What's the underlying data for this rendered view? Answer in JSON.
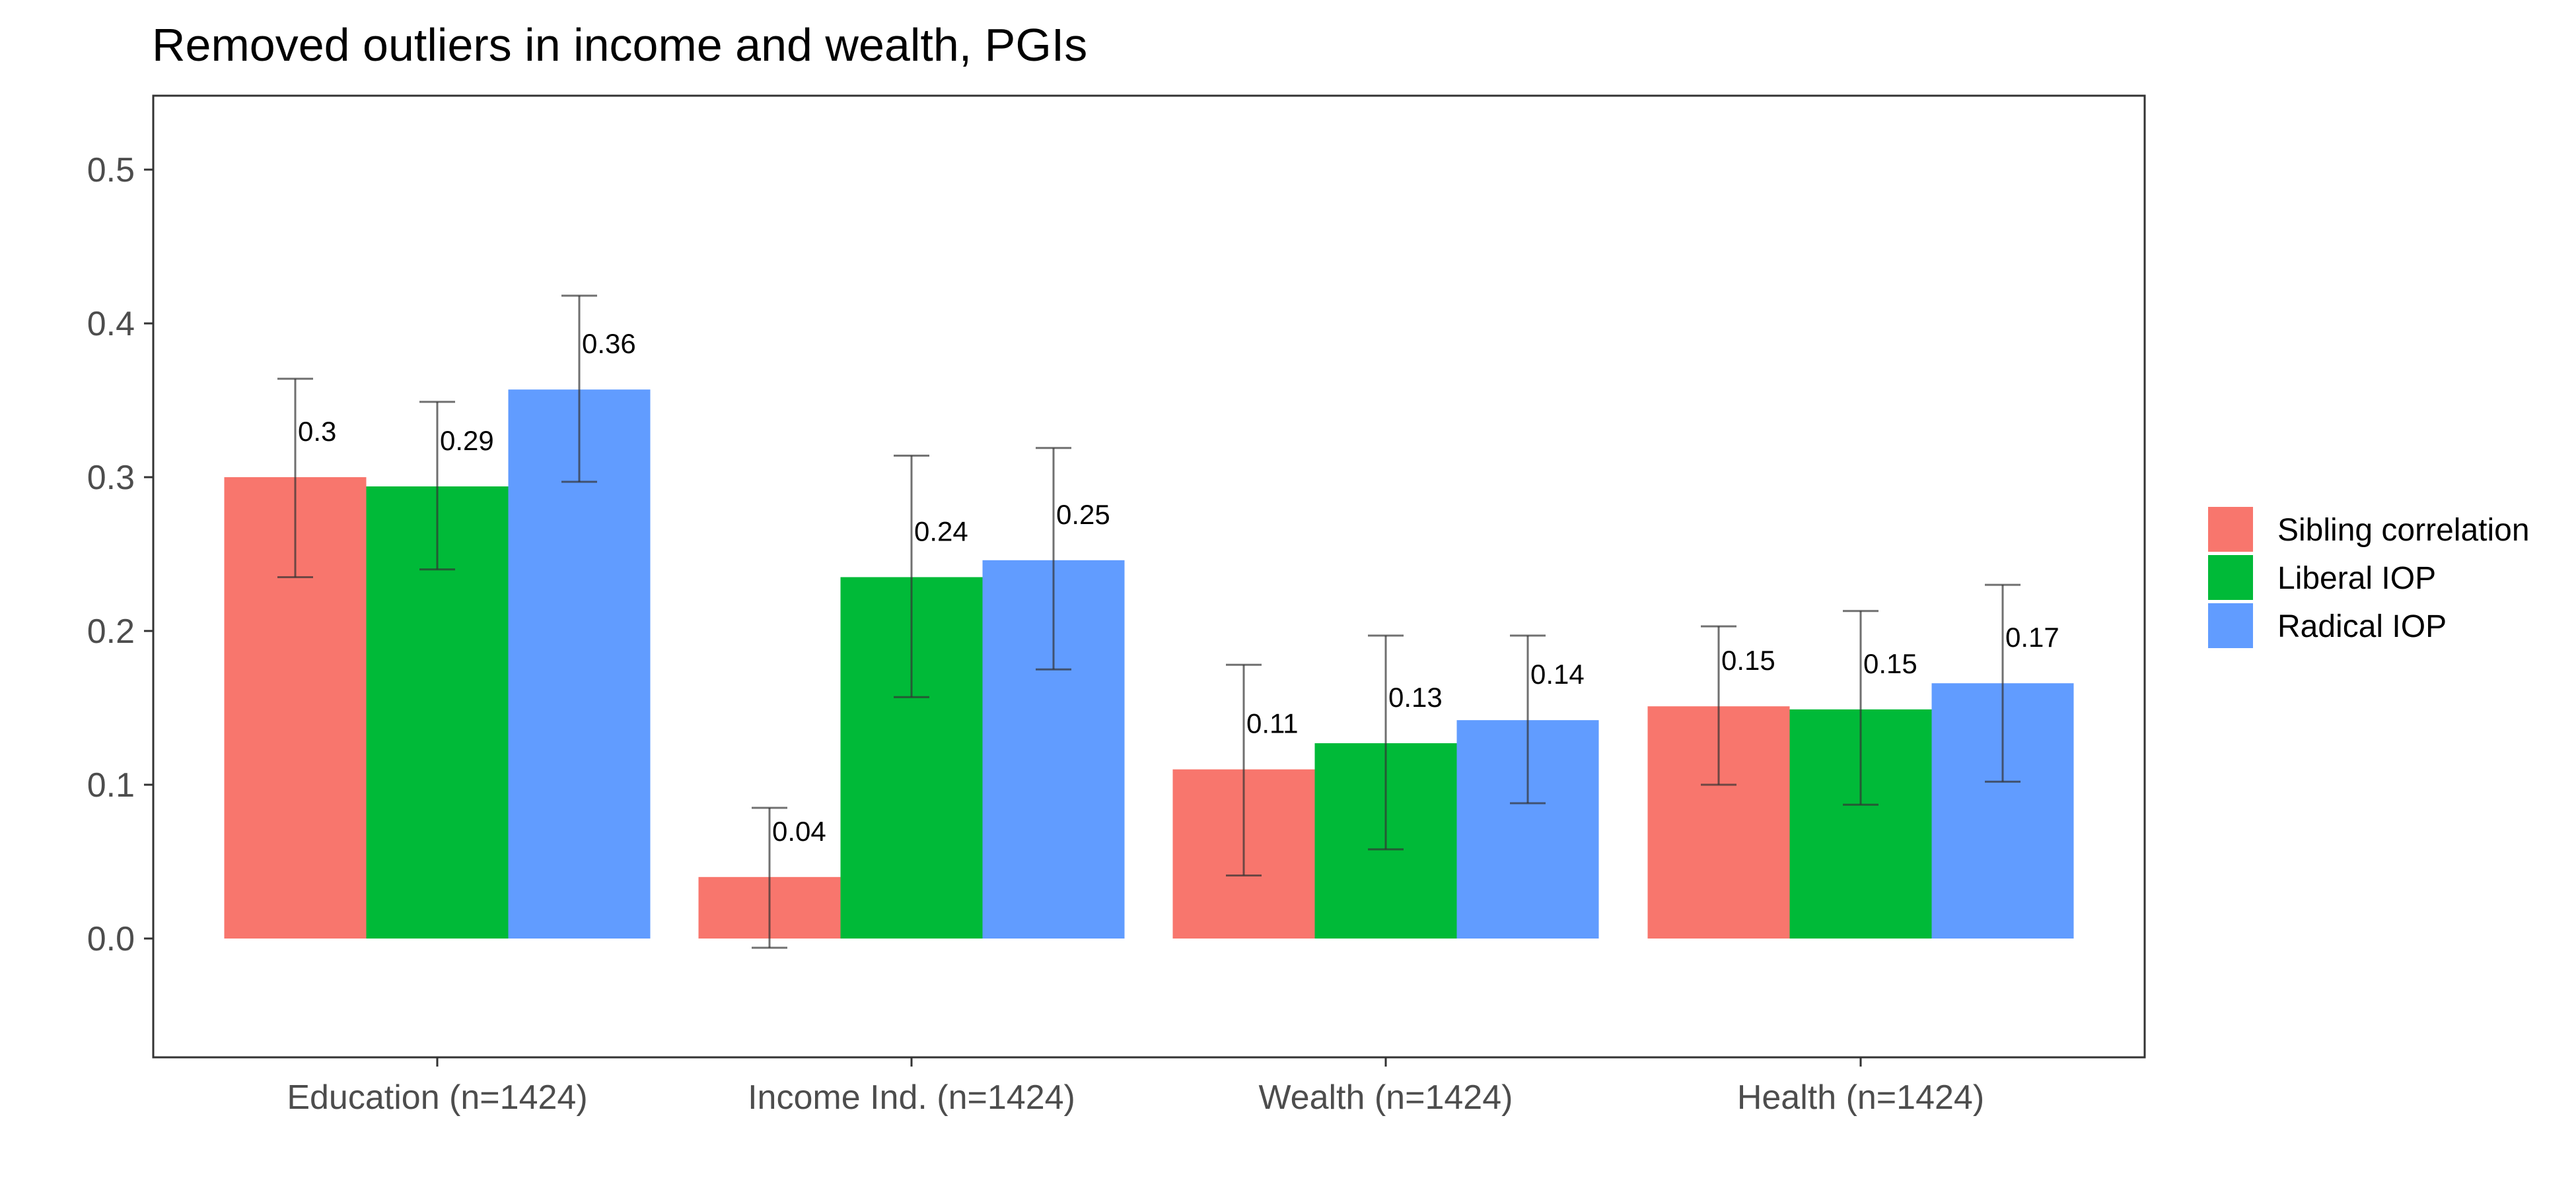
{
  "chart_data": {
    "type": "bar",
    "title": "Removed outliers in income and wealth, PGIs",
    "xlabel": "",
    "ylabel": "",
    "categories": [
      "Education (n=1424)",
      "Income Ind. (n=1424)",
      "Wealth (n=1424)",
      "Health (n=1424)"
    ],
    "ylim": [
      -0.077,
      0.55
    ],
    "yticks": [
      0.0,
      0.1,
      0.2,
      0.3,
      0.4,
      0.5
    ],
    "ytick_labels": [
      "0.0",
      "0.1",
      "0.2",
      "0.3",
      "0.4",
      "0.5"
    ],
    "grid": false,
    "legend_position": "right",
    "series": [
      {
        "name": "Sibling correlation",
        "color": "#F8766D",
        "values": [
          0.3,
          0.04,
          0.11,
          0.151
        ],
        "labels": [
          "0.3",
          "0.04",
          "0.11",
          "0.15"
        ],
        "error_low": [
          0.235,
          -0.006,
          0.041,
          0.1
        ],
        "error_high": [
          0.364,
          0.085,
          0.178,
          0.203
        ]
      },
      {
        "name": "Liberal IOP",
        "color": "#00BA38",
        "values": [
          0.294,
          0.235,
          0.127,
          0.149
        ],
        "labels": [
          "0.29",
          "0.24",
          "0.13",
          "0.15"
        ],
        "error_low": [
          0.24,
          0.157,
          0.058,
          0.087
        ],
        "error_high": [
          0.349,
          0.314,
          0.197,
          0.213
        ]
      },
      {
        "name": "Radical IOP",
        "color": "#619CFF",
        "values": [
          0.357,
          0.246,
          0.142,
          0.166
        ],
        "labels": [
          "0.36",
          "0.25",
          "0.14",
          "0.17"
        ],
        "error_low": [
          0.297,
          0.175,
          0.088,
          0.102
        ],
        "error_high": [
          0.418,
          0.319,
          0.197,
          0.23
        ]
      }
    ]
  }
}
